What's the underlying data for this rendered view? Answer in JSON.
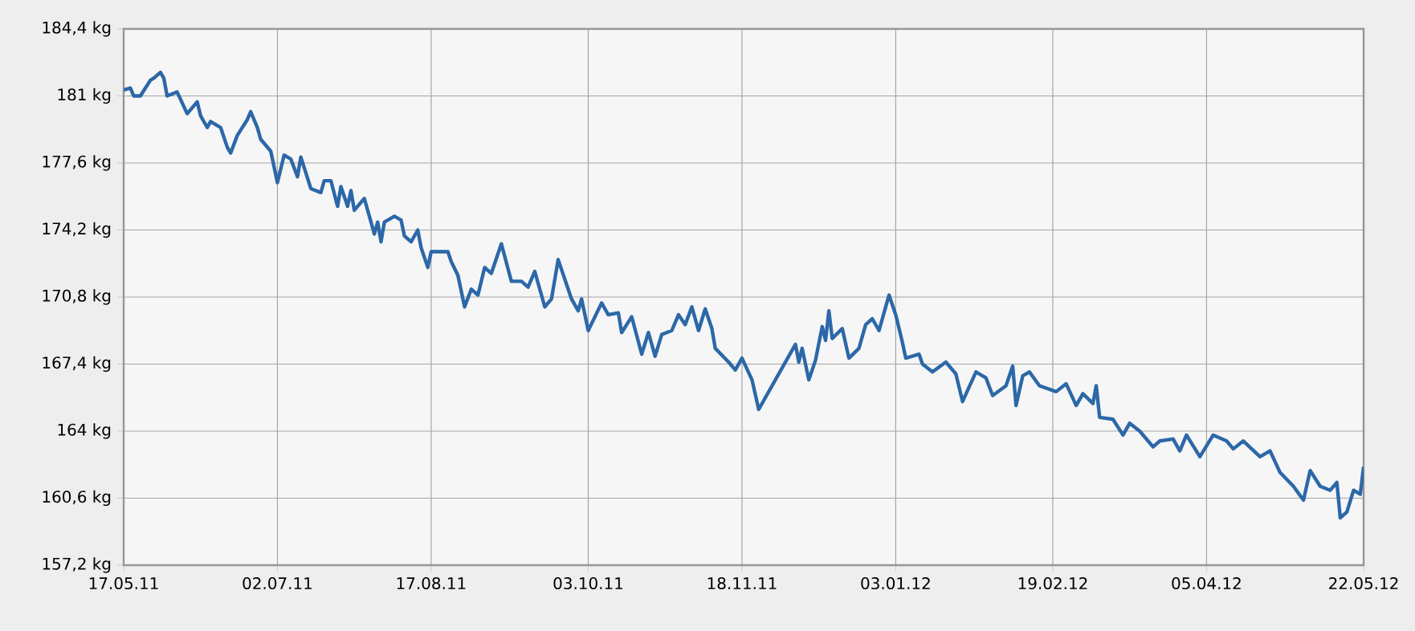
{
  "chart_data": {
    "type": "line",
    "color": "#2c68a8",
    "grid": true,
    "marker": "none",
    "line_style": "solid",
    "xlim": [
      "2011-05-17",
      "2012-05-22"
    ],
    "xticks": [
      {
        "value": "2011-05-17",
        "label": "17.05.11"
      },
      {
        "value": "2011-07-02",
        "label": "02.07.11"
      },
      {
        "value": "2011-08-17",
        "label": "17.08.11"
      },
      {
        "value": "2011-10-03",
        "label": "03.10.11"
      },
      {
        "value": "2011-11-18",
        "label": "18.11.11"
      },
      {
        "value": "2012-01-03",
        "label": "03.01.12"
      },
      {
        "value": "2012-02-19",
        "label": "19.02.12"
      },
      {
        "value": "2012-04-05",
        "label": "05.04.12"
      },
      {
        "value": "2012-05-22",
        "label": "22.05.12"
      }
    ],
    "ylim": [
      157.2,
      184.4
    ],
    "yticks": [
      {
        "value": 157.2,
        "label": "157,2 kg"
      },
      {
        "value": 160.6,
        "label": "160,6 kg"
      },
      {
        "value": 164,
        "label": "164 kg"
      },
      {
        "value": 167.4,
        "label": "167,4 kg"
      },
      {
        "value": 170.8,
        "label": "170,8 kg"
      },
      {
        "value": 174.2,
        "label": "174,2 kg"
      },
      {
        "value": 177.6,
        "label": "177,6 kg"
      },
      {
        "value": 181,
        "label": "181 kg"
      },
      {
        "value": 184.4,
        "label": "184,4 kg"
      }
    ],
    "x": [
      "2011-05-17",
      "2011-05-19",
      "2011-05-20",
      "2011-05-22",
      "2011-05-25",
      "2011-05-26",
      "2011-05-28",
      "2011-05-29",
      "2011-05-30",
      "2011-06-02",
      "2011-06-05",
      "2011-06-08",
      "2011-06-09",
      "2011-06-11",
      "2011-06-12",
      "2011-06-15",
      "2011-06-17",
      "2011-06-18",
      "2011-06-20",
      "2011-06-23",
      "2011-06-24",
      "2011-06-26",
      "2011-06-27",
      "2011-06-30",
      "2011-07-02",
      "2011-07-04",
      "2011-07-06",
      "2011-07-08",
      "2011-07-09",
      "2011-07-12",
      "2011-07-15",
      "2011-07-16",
      "2011-07-18",
      "2011-07-20",
      "2011-07-21",
      "2011-07-23",
      "2011-07-24",
      "2011-07-25",
      "2011-07-28",
      "2011-07-29",
      "2011-07-31",
      "2011-08-01",
      "2011-08-02",
      "2011-08-03",
      "2011-08-06",
      "2011-08-08",
      "2011-08-09",
      "2011-08-11",
      "2011-08-13",
      "2011-08-14",
      "2011-08-16",
      "2011-08-17",
      "2011-08-19",
      "2011-08-22",
      "2011-08-23",
      "2011-08-25",
      "2011-08-27",
      "2011-08-29",
      "2011-08-31",
      "2011-09-02",
      "2011-09-04",
      "2011-09-07",
      "2011-09-10",
      "2011-09-13",
      "2011-09-15",
      "2011-09-17",
      "2011-09-20",
      "2011-09-22",
      "2011-09-24",
      "2011-09-28",
      "2011-09-30",
      "2011-10-01",
      "2011-10-03",
      "2011-10-07",
      "2011-10-09",
      "2011-10-12",
      "2011-10-13",
      "2011-10-16",
      "2011-10-19",
      "2011-10-21",
      "2011-10-23",
      "2011-10-25",
      "2011-10-28",
      "2011-10-30",
      "2011-11-01",
      "2011-11-03",
      "2011-11-05",
      "2011-11-07",
      "2011-11-09",
      "2011-11-10",
      "2011-11-14",
      "2011-11-16",
      "2011-11-18",
      "2011-11-21",
      "2011-11-23",
      "2011-12-04",
      "2011-12-05",
      "2011-12-06",
      "2011-12-08",
      "2011-12-10",
      "2011-12-12",
      "2011-12-13",
      "2011-12-14",
      "2011-12-15",
      "2011-12-18",
      "2011-12-20",
      "2011-12-23",
      "2011-12-25",
      "2011-12-27",
      "2011-12-29",
      "2012-01-01",
      "2012-01-03",
      "2012-01-05",
      "2012-01-06",
      "2012-01-10",
      "2012-01-11",
      "2012-01-14",
      "2012-01-18",
      "2012-01-21",
      "2012-01-23",
      "2012-01-27",
      "2012-01-30",
      "2012-02-01",
      "2012-02-05",
      "2012-02-07",
      "2012-02-08",
      "2012-02-10",
      "2012-02-12",
      "2012-02-15",
      "2012-02-20",
      "2012-02-23",
      "2012-02-26",
      "2012-02-28",
      "2012-03-02",
      "2012-03-03",
      "2012-03-04",
      "2012-03-08",
      "2012-03-11",
      "2012-03-13",
      "2012-03-16",
      "2012-03-20",
      "2012-03-22",
      "2012-03-26",
      "2012-03-28",
      "2012-03-30",
      "2012-04-03",
      "2012-04-07",
      "2012-04-11",
      "2012-04-13",
      "2012-04-16",
      "2012-04-21",
      "2012-04-24",
      "2012-04-27",
      "2012-05-01",
      "2012-05-04",
      "2012-05-06",
      "2012-05-09",
      "2012-05-12",
      "2012-05-14",
      "2012-05-15",
      "2012-05-17",
      "2012-05-19",
      "2012-05-21",
      "2012-05-22"
    ],
    "values": [
      181.3,
      181.4,
      181.0,
      181.0,
      181.8,
      181.9,
      182.2,
      181.9,
      181.0,
      181.2,
      180.1,
      180.7,
      180.0,
      179.4,
      179.7,
      179.4,
      178.4,
      178.1,
      179.0,
      179.8,
      180.2,
      179.4,
      178.8,
      178.2,
      176.6,
      178.0,
      177.8,
      176.9,
      177.9,
      176.3,
      176.1,
      176.7,
      176.7,
      175.4,
      176.4,
      175.4,
      176.2,
      175.2,
      175.8,
      175.2,
      174.0,
      174.6,
      173.6,
      174.6,
      174.9,
      174.7,
      173.9,
      173.6,
      174.2,
      173.3,
      172.3,
      173.1,
      173.1,
      173.1,
      172.6,
      171.9,
      170.3,
      171.2,
      170.9,
      172.3,
      172.0,
      173.5,
      171.6,
      171.6,
      171.3,
      172.1,
      170.3,
      170.7,
      172.7,
      170.7,
      170.1,
      170.7,
      169.1,
      170.5,
      169.9,
      170.0,
      169.0,
      169.8,
      167.9,
      169.0,
      167.8,
      168.9,
      169.1,
      169.9,
      169.4,
      170.3,
      169.1,
      170.2,
      169.2,
      168.2,
      167.5,
      167.1,
      167.7,
      166.6,
      165.1,
      168.4,
      167.5,
      168.2,
      166.6,
      167.6,
      169.3,
      168.6,
      170.1,
      168.7,
      169.2,
      167.7,
      168.2,
      169.4,
      169.7,
      169.1,
      170.9,
      169.9,
      168.5,
      167.7,
      167.9,
      167.4,
      167.0,
      167.5,
      166.9,
      165.5,
      167.0,
      166.7,
      165.8,
      166.3,
      167.3,
      165.3,
      166.8,
      167.0,
      166.3,
      166.0,
      166.4,
      165.3,
      165.9,
      165.4,
      166.3,
      164.7,
      164.6,
      163.8,
      164.4,
      164.0,
      163.2,
      163.5,
      163.6,
      163.0,
      163.8,
      162.7,
      163.8,
      163.5,
      163.1,
      163.5,
      162.7,
      163.0,
      161.9,
      161.2,
      160.5,
      162.0,
      161.2,
      161.0,
      161.4,
      159.6,
      159.9,
      161.0,
      160.8,
      162.2
    ]
  }
}
